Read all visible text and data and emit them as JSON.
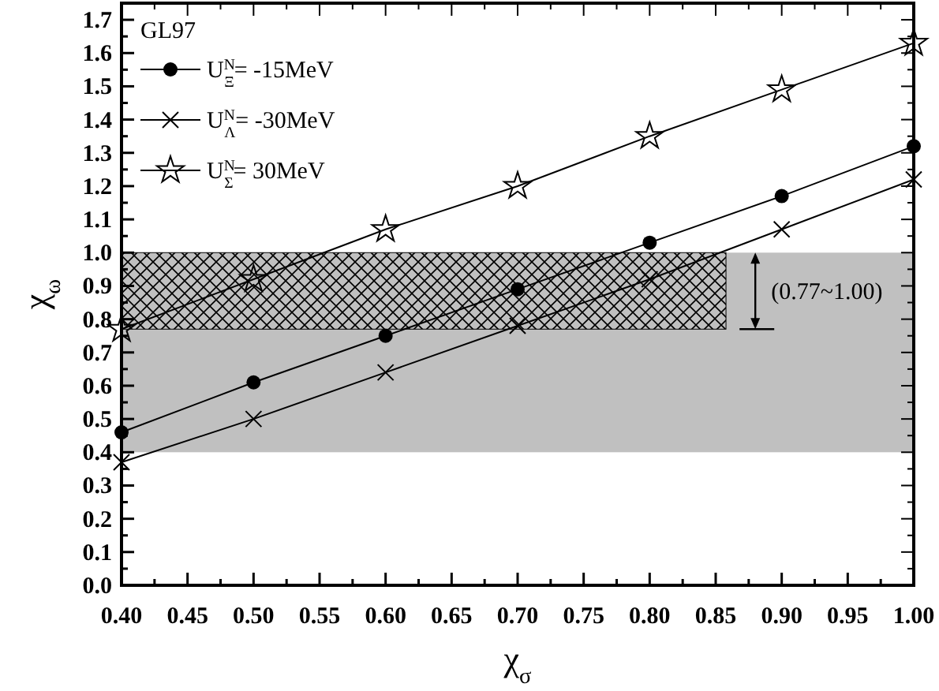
{
  "chart_data": {
    "type": "line",
    "legend_title": "GL97",
    "xlabel": "χ$_{σ}$",
    "ylabel": "χ$_{ω}$",
    "x": [
      0.4,
      0.5,
      0.6,
      0.7,
      0.8,
      0.9,
      1.0
    ],
    "series": [
      {
        "name": "U$^{N}$$_{Ξ}$= -15MeV",
        "color": "#000000",
        "marker": "circle",
        "values": [
          0.46,
          0.61,
          0.75,
          0.89,
          1.03,
          1.17,
          1.32
        ]
      },
      {
        "name": "U$^{N}$$_{Λ}$= -30MeV",
        "color": "#000000",
        "marker": "cross",
        "values": [
          0.37,
          0.5,
          0.64,
          0.78,
          0.92,
          1.07,
          1.22
        ]
      },
      {
        "name": "U$^{N}$$_{Σ}$= 30MeV",
        "color": "#000000",
        "marker": "star",
        "values": [
          0.77,
          0.92,
          1.07,
          1.2,
          1.35,
          1.49,
          1.63
        ]
      }
    ],
    "bands": [
      {
        "axis": "y",
        "from": 0.4,
        "to": 1.0,
        "color": "#c0c0c0"
      },
      {
        "axis": "y",
        "from": 0.77,
        "to": 1.0,
        "label": "(0.77~1.00)",
        "color": "#000000"
      }
    ],
    "xlim": [
      0.4,
      1.0
    ],
    "ylim": [
      0,
      1.75
    ],
    "xticks": [
      {
        "value": 0.4,
        "label": "0.40"
      },
      {
        "value": 0.425,
        "label": null
      },
      {
        "value": 0.45,
        "label": "0.45"
      },
      {
        "value": 0.475,
        "label": null
      },
      {
        "value": 0.5,
        "label": "0.50"
      },
      {
        "value": 0.525,
        "label": null
      },
      {
        "value": 0.55,
        "label": "0.55"
      },
      {
        "value": 0.575,
        "label": null
      },
      {
        "value": 0.6,
        "label": "0.60"
      },
      {
        "value": 0.625,
        "label": null
      },
      {
        "value": 0.65,
        "label": "0.65"
      },
      {
        "value": 0.675,
        "label": null
      },
      {
        "value": 0.7,
        "label": "0.70"
      },
      {
        "value": 0.725,
        "label": null
      },
      {
        "value": 0.75,
        "label": "0.75"
      },
      {
        "value": 0.775,
        "label": null
      },
      {
        "value": 0.8,
        "label": "0.80"
      },
      {
        "value": 0.825,
        "label": null
      },
      {
        "value": 0.85,
        "label": "0.85"
      },
      {
        "value": 0.875,
        "label": null
      },
      {
        "value": 0.9,
        "label": "0.90"
      },
      {
        "value": 0.925,
        "label": null
      },
      {
        "value": 0.95,
        "label": "0.95"
      },
      {
        "value": 0.975,
        "label": null
      },
      {
        "value": 1.0,
        "label": "1.00"
      }
    ],
    "yticks": [
      {
        "value": 0,
        "label": "0.0"
      },
      {
        "value": 0.05,
        "label": null
      },
      {
        "value": 0.1,
        "label": "0.1"
      },
      {
        "value": 0.15,
        "label": null
      },
      {
        "value": 0.2,
        "label": "0.2"
      },
      {
        "value": 0.25,
        "label": null
      },
      {
        "value": 0.3,
        "label": "0.3"
      },
      {
        "value": 0.35,
        "label": null
      },
      {
        "value": 0.4,
        "label": "0.4"
      },
      {
        "value": 0.45,
        "label": null
      },
      {
        "value": 0.5,
        "label": "0.5"
      },
      {
        "value": 0.55,
        "label": null
      },
      {
        "value": 0.6,
        "label": "0.6"
      },
      {
        "value": 0.65,
        "label": null
      },
      {
        "value": 0.7,
        "label": "0.7"
      },
      {
        "value": 0.75,
        "label": null
      },
      {
        "value": 0.8,
        "label": "0.8"
      },
      {
        "value": 0.85,
        "label": null
      },
      {
        "value": 0.9,
        "label": "0.9"
      },
      {
        "value": 0.95,
        "label": null
      },
      {
        "value": 1.0,
        "label": "1.0"
      },
      {
        "value": 1.05,
        "label": null
      },
      {
        "value": 1.1,
        "label": "1.1"
      },
      {
        "value": 1.15,
        "label": null
      },
      {
        "value": 1.2,
        "label": "1.2"
      },
      {
        "value": 1.25,
        "label": null
      },
      {
        "value": 1.3,
        "label": "1.3"
      },
      {
        "value": 1.35,
        "label": null
      },
      {
        "value": 1.4,
        "label": "1.4"
      },
      {
        "value": 1.45,
        "label": null
      },
      {
        "value": 1.5,
        "label": "1.5"
      },
      {
        "value": 1.55,
        "label": null
      },
      {
        "value": 1.6,
        "label": "1.6"
      },
      {
        "value": 1.65,
        "label": null
      },
      {
        "value": 1.7,
        "label": "1.7"
      }
    ],
    "legend": "top left",
    "line_style": "solid"
  }
}
